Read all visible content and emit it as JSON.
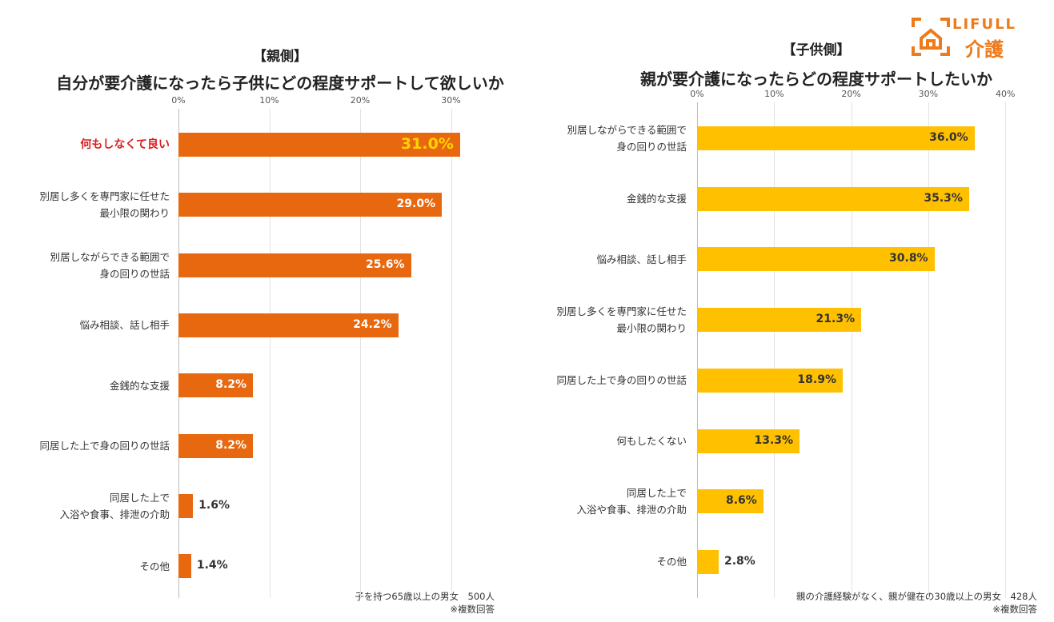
{
  "logo": {
    "brand": "LIFULL",
    "sub": "介護",
    "color": "#ee7b1b"
  },
  "chart_data": [
    {
      "type": "bar",
      "orientation": "horizontal",
      "title": "【親側】",
      "subtitle": "自分が要介護になったら子供にどの程度サポートして欲しいか",
      "xlim": [
        0,
        30
      ],
      "ticks": [
        "0%",
        "10%",
        "20%",
        "30%"
      ],
      "tick_values": [
        0,
        10,
        20,
        30
      ],
      "bar_color": "#e8680f",
      "categories": [
        "何もしなくて良い",
        "別居し多くを専門家に任せた\n最小限の関わり",
        "別居しながらできる範囲で\n身の回りの世話",
        "悩み相談、話し相手",
        "金銭的な支援",
        "同居した上で身の回りの世話",
        "同居した上で\n入浴や食事、排泄の介助",
        "その他"
      ],
      "values": [
        31.0,
        29.0,
        25.6,
        24.2,
        8.2,
        8.2,
        1.6,
        1.4
      ],
      "labels": [
        "31.0%",
        "29.0%",
        "25.6%",
        "24.2%",
        "8.2%",
        "8.2%",
        "1.6%",
        "1.4%"
      ],
      "highlight_index": 0,
      "highlight_label_color": "#ffd400",
      "highlight_category_color": "#d91e1e",
      "note": "子を持つ65歳以上の男女　500人\n※複数回答"
    },
    {
      "type": "bar",
      "orientation": "horizontal",
      "title": "【子供側】",
      "subtitle": "親が要介護になったらどの程度サポートしたいか",
      "xlim": [
        0,
        40
      ],
      "ticks": [
        "0%",
        "10%",
        "20%",
        "30%",
        "40%"
      ],
      "tick_values": [
        0,
        10,
        20,
        30,
        40
      ],
      "bar_color": "#ffc000",
      "categories": [
        "別居しながらできる範囲で\n身の回りの世話",
        "金銭的な支援",
        "悩み相談、話し相手",
        "別居し多くを専門家に任せた\n最小限の関わり",
        "同居した上で身の回りの世話",
        "何もしたくない",
        "同居した上で\n入浴や食事、排泄の介助",
        "その他"
      ],
      "values": [
        36.0,
        35.3,
        30.8,
        21.3,
        18.9,
        13.3,
        8.6,
        2.8
      ],
      "labels": [
        "36.0%",
        "35.3%",
        "30.8%",
        "21.3%",
        "18.9%",
        "13.3%",
        "8.6%",
        "2.8%"
      ],
      "note": "親の介護経験がなく、親が健在の30歳以上の男女　428人\n※複数回答"
    }
  ]
}
